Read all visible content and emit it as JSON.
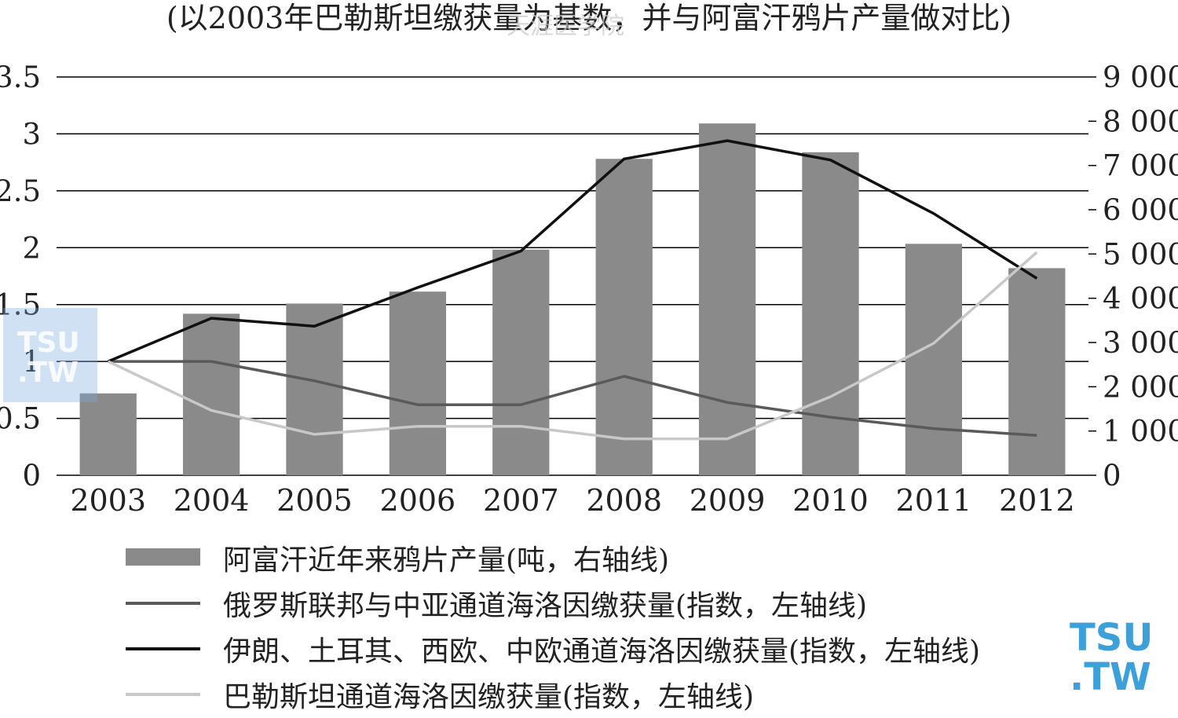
{
  "subtitle": "(以2003年巴勒斯坦缴获量为基数，并与阿富汗鸦片产量做对比)",
  "watermark": {
    "line1": "TSU",
    "line2": ".TW",
    "center_text": "天涯医学院"
  },
  "colors": {
    "bars": "#8a8a8a",
    "russia": "#5a5a5a",
    "iran": "#111111",
    "pakistan": "#c8c8c8",
    "grid": "#000000"
  },
  "chart_data": {
    "type": "bar",
    "categories": [
      "2003",
      "2004",
      "2005",
      "2006",
      "2007",
      "2008",
      "2009",
      "2010",
      "2011",
      "2012"
    ],
    "left_axis": {
      "ylim": [
        0,
        3.5
      ],
      "ticks": [
        "0",
        "0.5",
        "1",
        "1.5",
        "2",
        "2.5",
        "3",
        "3.5"
      ],
      "tick_values": [
        0,
        0.5,
        1,
        1.5,
        2,
        2.5,
        3,
        3.5
      ]
    },
    "right_axis": {
      "ylim": [
        0,
        9000
      ],
      "ticks": [
        "0",
        "1 000",
        "2 000",
        "3 000",
        "4 000",
        "5 000",
        "6 000",
        "7 000",
        "8 000",
        "9 000"
      ],
      "tick_values": [
        0,
        1000,
        2000,
        3000,
        4000,
        5000,
        6000,
        7000,
        8000,
        9000
      ]
    },
    "grid": true,
    "legend_position": "bottom",
    "bar_series": {
      "name": "阿富汗近年来鸦片产量(吨，右轴线)",
      "axis": "right",
      "values": [
        1850,
        3650,
        3880,
        4150,
        5100,
        7150,
        7950,
        7300,
        5230,
        4680
      ]
    },
    "line_series": [
      {
        "name": "俄罗斯联邦与中亚通道海洛因缴获量(指数，左轴线)",
        "axis": "left",
        "values": [
          1.0,
          1.0,
          0.83,
          0.62,
          0.62,
          0.87,
          0.64,
          0.51,
          0.41,
          0.35
        ]
      },
      {
        "name": "伊朗、土耳其、西欧、中欧通道海洛因缴获量(指数，左轴线)",
        "axis": "left",
        "values": [
          1.0,
          1.38,
          1.31,
          1.65,
          1.97,
          2.78,
          2.94,
          2.77,
          2.3,
          1.73
        ]
      },
      {
        "name": "巴勒斯坦通道海洛因缴获量(指数，左轴线)",
        "axis": "left",
        "values": [
          1.0,
          0.57,
          0.36,
          0.43,
          0.43,
          0.32,
          0.32,
          0.69,
          1.16,
          1.96
        ]
      }
    ]
  }
}
